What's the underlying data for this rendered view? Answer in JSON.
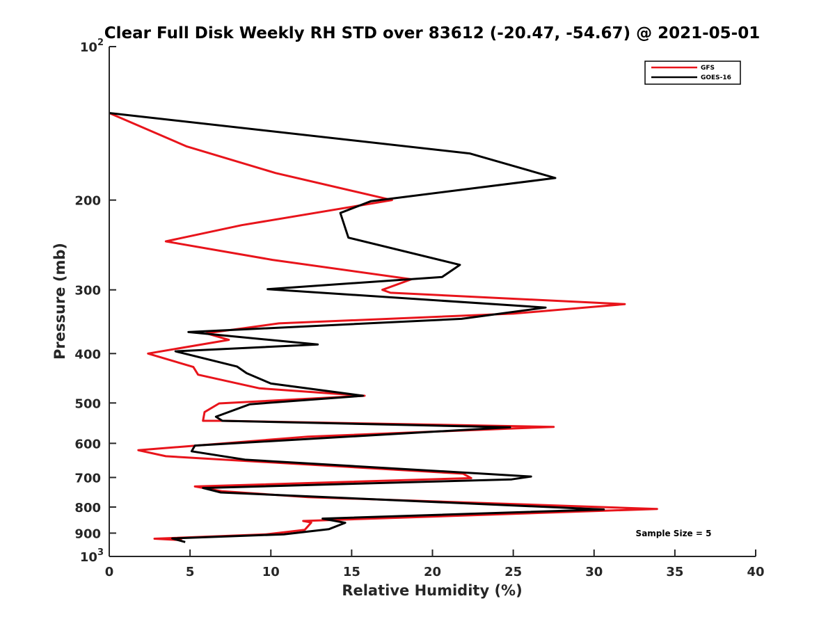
{
  "chart_data": {
    "type": "line",
    "title": "Clear Full Disk Weekly RH STD over 83612 (-20.47, -54.67) @ 2021-05-01",
    "xlabel": "Relative Humidity (%)",
    "ylabel": "Pressure (mb)",
    "xlim": [
      0,
      40
    ],
    "ylim": [
      100,
      1000
    ],
    "y_scale": "log",
    "y_reversed": true,
    "x_ticks": [
      "0",
      "5",
      "10",
      "15",
      "20",
      "25",
      "30",
      "35",
      "40"
    ],
    "y_ticks": [
      {
        "value": 100,
        "base": "10",
        "exp": "2"
      },
      {
        "value": 200,
        "base": "200",
        "exp": ""
      },
      {
        "value": 300,
        "base": "300",
        "exp": ""
      },
      {
        "value": 400,
        "base": "400",
        "exp": ""
      },
      {
        "value": 500,
        "base": "500",
        "exp": ""
      },
      {
        "value": 600,
        "base": "600",
        "exp": ""
      },
      {
        "value": 700,
        "base": "700",
        "exp": ""
      },
      {
        "value": 800,
        "base": "800",
        "exp": ""
      },
      {
        "value": 900,
        "base": "900",
        "exp": ""
      },
      {
        "value": 1000,
        "base": "10",
        "exp": "3"
      }
    ],
    "grid": false,
    "legend_position": "top-right",
    "annotation": "Sample Size = 5",
    "series": [
      {
        "name": "GFS",
        "color": "#e8141b",
        "points": [
          [
            0,
            135
          ],
          [
            4.8,
            157
          ],
          [
            10.3,
            177
          ],
          [
            17.5,
            200
          ],
          [
            8.2,
            224
          ],
          [
            3.5,
            241
          ],
          [
            10.1,
            262
          ],
          [
            18.7,
            286
          ],
          [
            16.9,
            300
          ],
          [
            17.4,
            304
          ],
          [
            31.9,
            320
          ],
          [
            25.0,
            334
          ],
          [
            10.5,
            349
          ],
          [
            6.0,
            365
          ],
          [
            7.4,
            376
          ],
          [
            2.4,
            400
          ],
          [
            5.2,
            425
          ],
          [
            5.5,
            440
          ],
          [
            9.3,
            468
          ],
          [
            15.8,
            484
          ],
          [
            6.8,
            501
          ],
          [
            5.9,
            521
          ],
          [
            5.8,
            542
          ],
          [
            7.0,
            542
          ],
          [
            27.5,
            557
          ],
          [
            12.3,
            582
          ],
          [
            1.8,
            619
          ],
          [
            3.5,
            636
          ],
          [
            21.9,
            688
          ],
          [
            22.4,
            702
          ],
          [
            5.3,
            729
          ],
          [
            7.0,
            745
          ],
          [
            12.3,
            765
          ],
          [
            33.9,
            807
          ],
          [
            12.0,
            852
          ],
          [
            12.5,
            858
          ],
          [
            12.1,
            887
          ],
          [
            9.7,
            905
          ],
          [
            2.8,
            923
          ],
          [
            4.5,
            929
          ]
        ]
      },
      {
        "name": "GOES-16",
        "color": "#000000",
        "points": [
          [
            0,
            135
          ],
          [
            22.3,
            162
          ],
          [
            27.6,
            181
          ],
          [
            16.2,
            201
          ],
          [
            14.3,
            212
          ],
          [
            14.8,
            237
          ],
          [
            21.7,
            268
          ],
          [
            20.6,
            283
          ],
          [
            9.8,
            299
          ],
          [
            27.0,
            325
          ],
          [
            21.8,
            342
          ],
          [
            4.9,
            363
          ],
          [
            12.9,
            384
          ],
          [
            4.1,
            396
          ],
          [
            7.9,
            424
          ],
          [
            8.5,
            437
          ],
          [
            10.0,
            458
          ],
          [
            15.7,
            484
          ],
          [
            8.7,
            503
          ],
          [
            6.6,
            532
          ],
          [
            7.0,
            542
          ],
          [
            24.8,
            558
          ],
          [
            5.3,
            606
          ],
          [
            5.1,
            622
          ],
          [
            8.4,
            646
          ],
          [
            26.1,
            697
          ],
          [
            24.9,
            706
          ],
          [
            5.8,
            734
          ],
          [
            6.9,
            749
          ],
          [
            30.6,
            809
          ],
          [
            13.2,
            843
          ],
          [
            14.6,
            859
          ],
          [
            13.6,
            884
          ],
          [
            10.8,
            905
          ],
          [
            3.9,
            922
          ],
          [
            4.7,
            937
          ]
        ]
      }
    ]
  }
}
